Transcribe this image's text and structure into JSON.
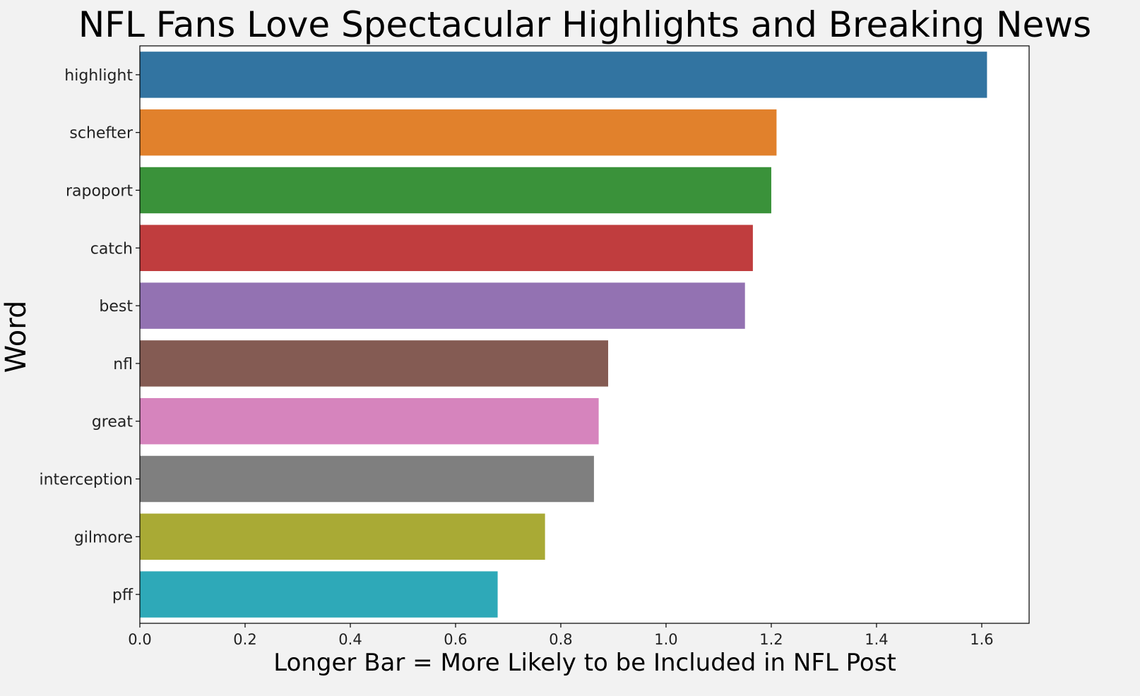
{
  "chart_data": {
    "type": "bar",
    "orientation": "horizontal",
    "title": "NFL Fans Love Spectacular Highlights and Breaking News",
    "xlabel": "Longer Bar = More Likely to be Included in NFL Post",
    "ylabel": "Word",
    "categories": [
      "highlight",
      "schefter",
      "rapoport",
      "catch",
      "best",
      "nfl",
      "great",
      "interception",
      "gilmore",
      "pff"
    ],
    "values": [
      1.61,
      1.21,
      1.2,
      1.165,
      1.15,
      0.89,
      0.872,
      0.863,
      0.77,
      0.68
    ],
    "colors": [
      "#3274a1",
      "#e1812c",
      "#3a923a",
      "#c03d3e",
      "#9372b2",
      "#845b53",
      "#d684bd",
      "#7f7f7f",
      "#a9aa35",
      "#2ea9b8"
    ],
    "xlim": [
      0,
      1.69
    ],
    "xticks": [
      0.0,
      0.2,
      0.4,
      0.6,
      0.8,
      1.0,
      1.2,
      1.4,
      1.6
    ],
    "xtick_labels": [
      "0.0",
      "0.2",
      "0.4",
      "0.6",
      "0.8",
      "1.0",
      "1.2",
      "1.4",
      "1.6"
    ],
    "grid": false,
    "legend": "none"
  }
}
